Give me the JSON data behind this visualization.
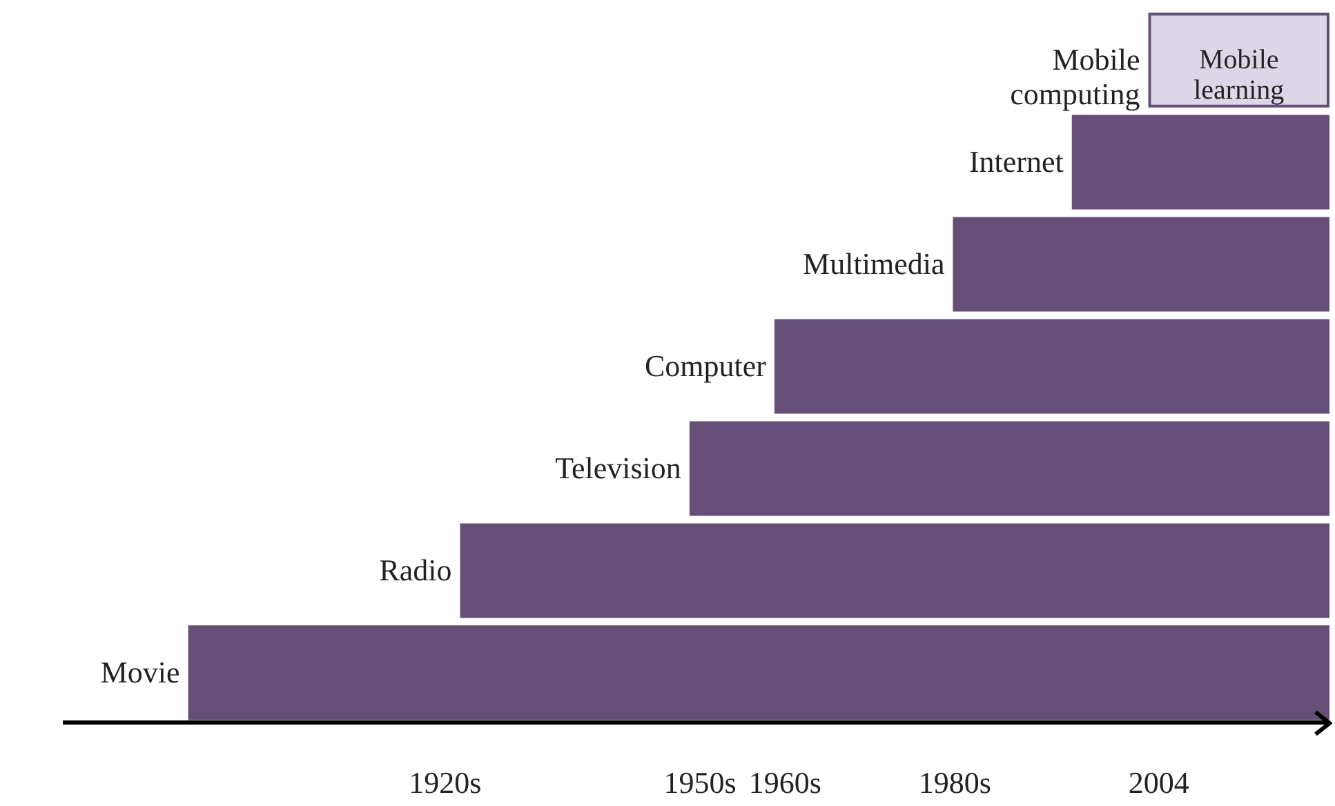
{
  "chart_data": {
    "type": "bar",
    "orientation": "horizontal",
    "categories": [
      "Mobile computing",
      "Internet",
      "Multimedia",
      "Computer",
      "Television",
      "Radio",
      "Movie"
    ],
    "base": [
      2003,
      1994,
      1980,
      1959,
      1949,
      1922,
      1890
    ],
    "values": [
      21,
      30,
      44,
      65,
      75,
      102,
      134
    ],
    "colors": [
      "#ddd6e8",
      "#654e78",
      "#654e78",
      "#654e78",
      "#654e78",
      "#654e78",
      "#654e78"
    ],
    "xlim": [
      1875,
      2024
    ],
    "xticks": [
      {
        "value": 1920,
        "label": "1920s"
      },
      {
        "value": 1950,
        "label": "1950s"
      },
      {
        "value": 1960,
        "label": "1960s"
      },
      {
        "value": 1980,
        "label": "1980s"
      },
      2004
    ],
    "annotations": [
      "Mobile learning"
    ],
    "grid": false
  }
}
